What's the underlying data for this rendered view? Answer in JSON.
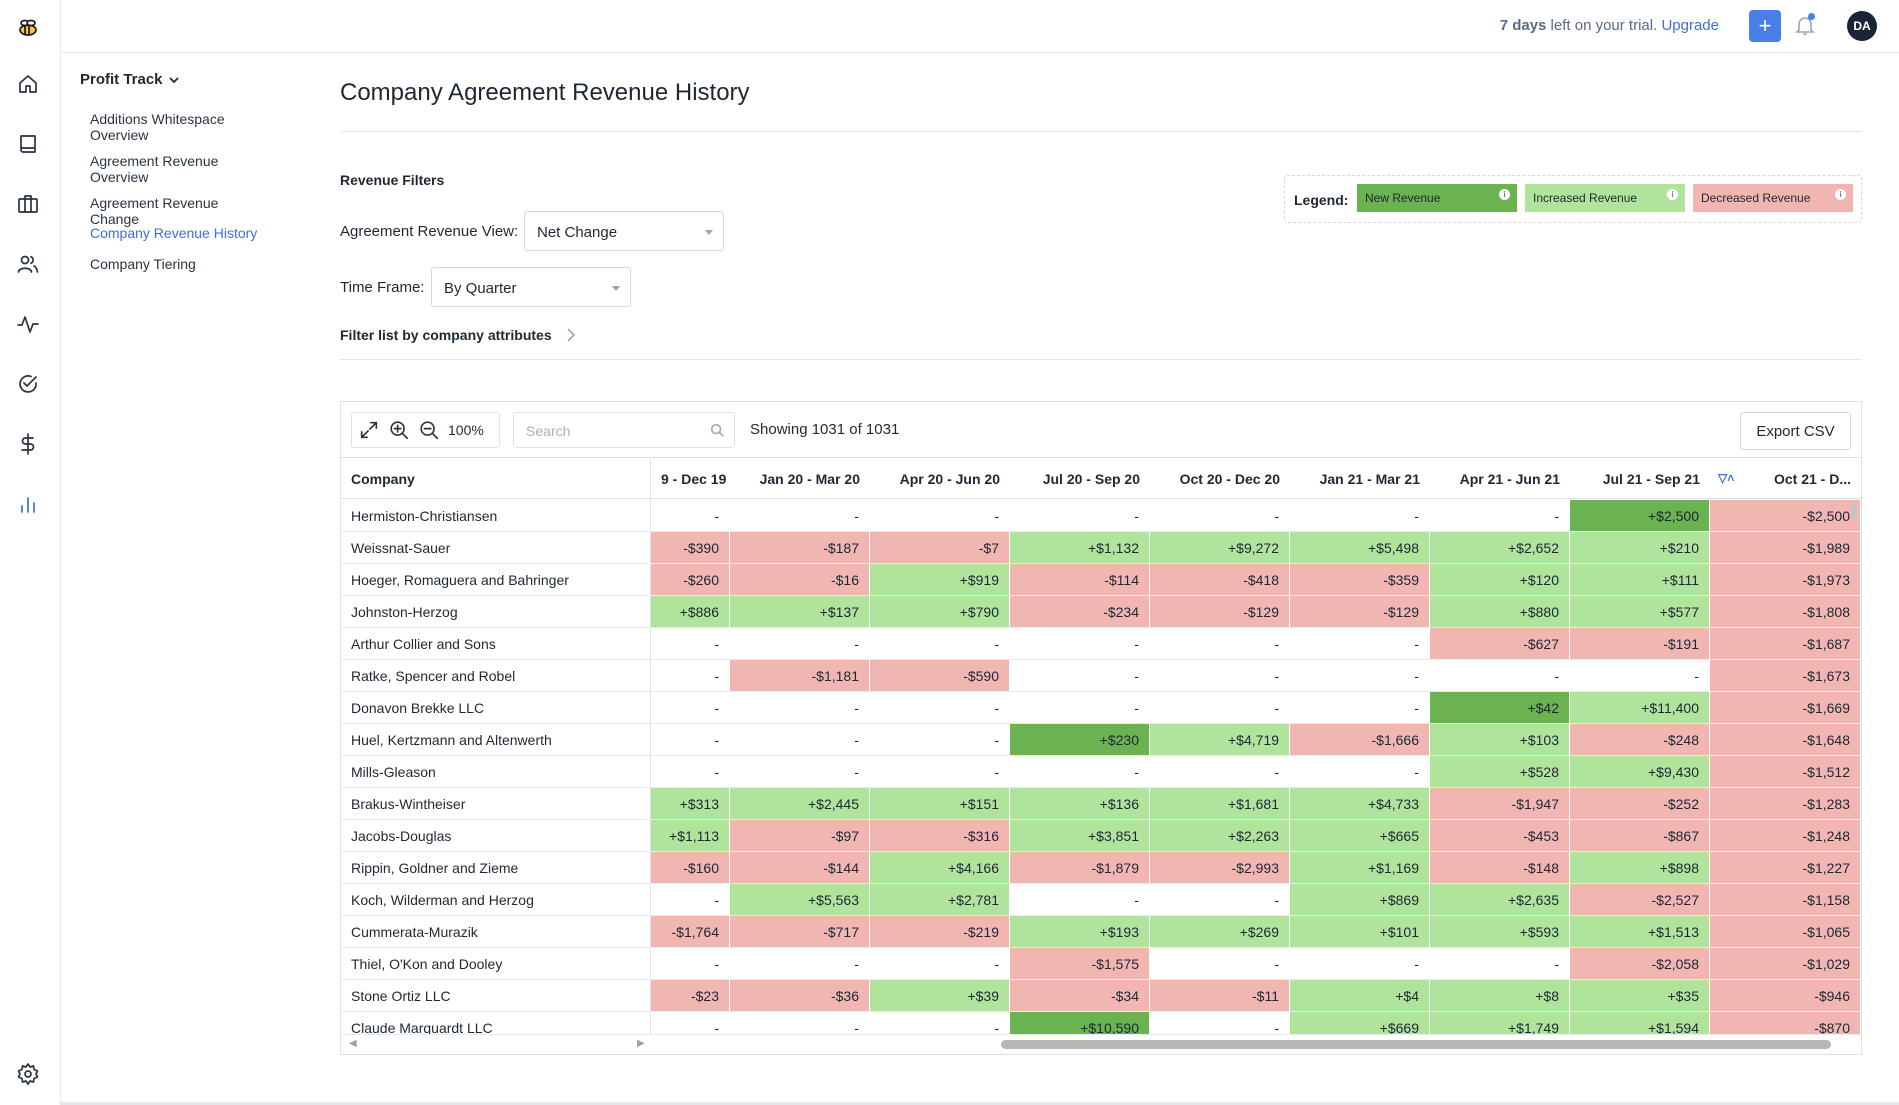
{
  "topbar": {
    "trial_days": "7 days",
    "trial_rest": " left on your trial. ",
    "upgrade": "Upgrade",
    "plus": "+",
    "avatar": "DA"
  },
  "subnav": {
    "title": "Profit Track",
    "items": [
      "Additions Whitespace Overview",
      "Agreement Revenue Overview",
      "Agreement Revenue Change",
      "Company Revenue History",
      "Company Tiering"
    ],
    "active_index": 3
  },
  "page": {
    "title": "Company Agreement Revenue History",
    "filters_title": "Revenue Filters",
    "view_label": "Agreement Revenue View:",
    "view_value": "Net Change",
    "timeframe_label": "Time Frame:",
    "timeframe_value": "By Quarter",
    "attr_link": "Filter list by company attributes"
  },
  "legend": {
    "label": "Legend:",
    "items": [
      {
        "label": "New Revenue",
        "color": "#6ab350"
      },
      {
        "label": "Increased Revenue",
        "color": "#b0e49c"
      },
      {
        "label": "Decreased Revenue",
        "color": "#f2b6b2"
      }
    ]
  },
  "grid": {
    "zoom": "100%",
    "search_placeholder": "Search",
    "showing": "Showing 1031 of 1031",
    "export": "Export CSV",
    "company_header": "Company",
    "columns": [
      "9 - Dec 19",
      "Jan 20 - Mar 20",
      "Apr 20 - Jun 20",
      "Jul 20 - Sep 20",
      "Oct 20 - Dec 20",
      "Jan 21 - Mar 21",
      "Apr 21 - Jun 21",
      "Jul 21 - Sep 21",
      "Oct 21 - D..."
    ],
    "rows": [
      {
        "company": "Hermiston-Christiansen",
        "cells": [
          [
            "-",
            "n"
          ],
          [
            "-",
            "n"
          ],
          [
            "-",
            "n"
          ],
          [
            "-",
            "n"
          ],
          [
            "-",
            "n"
          ],
          [
            "-",
            "n"
          ],
          [
            "-",
            "n"
          ],
          [
            "+$2,500",
            "N"
          ],
          [
            "-$2,500",
            "d"
          ]
        ]
      },
      {
        "company": "Weissnat-Sauer",
        "cells": [
          [
            "-$390",
            "d"
          ],
          [
            "-$187",
            "d"
          ],
          [
            "-$7",
            "d"
          ],
          [
            "+$1,132",
            "i"
          ],
          [
            "+$9,272",
            "i"
          ],
          [
            "+$5,498",
            "i"
          ],
          [
            "+$2,652",
            "i"
          ],
          [
            "+$210",
            "i"
          ],
          [
            "-$1,989",
            "d"
          ]
        ]
      },
      {
        "company": "Hoeger, Romaguera and Bahringer",
        "cells": [
          [
            "-$260",
            "d"
          ],
          [
            "-$16",
            "d"
          ],
          [
            "+$919",
            "i"
          ],
          [
            "-$114",
            "d"
          ],
          [
            "-$418",
            "d"
          ],
          [
            "-$359",
            "d"
          ],
          [
            "+$120",
            "i"
          ],
          [
            "+$111",
            "i"
          ],
          [
            "-$1,973",
            "d"
          ]
        ]
      },
      {
        "company": "Johnston-Herzog",
        "cells": [
          [
            "+$886",
            "i"
          ],
          [
            "+$137",
            "i"
          ],
          [
            "+$790",
            "i"
          ],
          [
            "-$234",
            "d"
          ],
          [
            "-$129",
            "d"
          ],
          [
            "-$129",
            "d"
          ],
          [
            "+$880",
            "i"
          ],
          [
            "+$577",
            "i"
          ],
          [
            "-$1,808",
            "d"
          ]
        ]
      },
      {
        "company": "Arthur Collier and Sons",
        "cells": [
          [
            "-",
            "n"
          ],
          [
            "-",
            "n"
          ],
          [
            "-",
            "n"
          ],
          [
            "-",
            "n"
          ],
          [
            "-",
            "n"
          ],
          [
            "-",
            "n"
          ],
          [
            "-$627",
            "d"
          ],
          [
            "-$191",
            "d"
          ],
          [
            "-$1,687",
            "d"
          ]
        ]
      },
      {
        "company": "Ratke, Spencer and Robel",
        "cells": [
          [
            "-",
            "n"
          ],
          [
            "-$1,181",
            "d"
          ],
          [
            "-$590",
            "d"
          ],
          [
            "-",
            "n"
          ],
          [
            "-",
            "n"
          ],
          [
            "-",
            "n"
          ],
          [
            "-",
            "n"
          ],
          [
            "-",
            "n"
          ],
          [
            "-$1,673",
            "d"
          ]
        ]
      },
      {
        "company": "Donavon Brekke LLC",
        "cells": [
          [
            "-",
            "n"
          ],
          [
            "-",
            "n"
          ],
          [
            "-",
            "n"
          ],
          [
            "-",
            "n"
          ],
          [
            "-",
            "n"
          ],
          [
            "-",
            "n"
          ],
          [
            "+$42",
            "N"
          ],
          [
            "+$11,400",
            "i"
          ],
          [
            "-$1,669",
            "d"
          ]
        ]
      },
      {
        "company": "Huel, Kertzmann and Altenwerth",
        "cells": [
          [
            "-",
            "n"
          ],
          [
            "-",
            "n"
          ],
          [
            "-",
            "n"
          ],
          [
            "+$230",
            "N"
          ],
          [
            "+$4,719",
            "i"
          ],
          [
            "-$1,666",
            "d"
          ],
          [
            "+$103",
            "i"
          ],
          [
            "-$248",
            "d"
          ],
          [
            "-$1,648",
            "d"
          ]
        ]
      },
      {
        "company": "Mills-Gleason",
        "cells": [
          [
            "-",
            "n"
          ],
          [
            "-",
            "n"
          ],
          [
            "-",
            "n"
          ],
          [
            "-",
            "n"
          ],
          [
            "-",
            "n"
          ],
          [
            "-",
            "n"
          ],
          [
            "+$528",
            "i"
          ],
          [
            "+$9,430",
            "i"
          ],
          [
            "-$1,512",
            "d"
          ]
        ]
      },
      {
        "company": "Brakus-Wintheiser",
        "cells": [
          [
            "+$313",
            "i"
          ],
          [
            "+$2,445",
            "i"
          ],
          [
            "+$151",
            "i"
          ],
          [
            "+$136",
            "i"
          ],
          [
            "+$1,681",
            "i"
          ],
          [
            "+$4,733",
            "i"
          ],
          [
            "-$1,947",
            "d"
          ],
          [
            "-$252",
            "d"
          ],
          [
            "-$1,283",
            "d"
          ]
        ]
      },
      {
        "company": "Jacobs-Douglas",
        "cells": [
          [
            "+$1,113",
            "i"
          ],
          [
            "-$97",
            "d"
          ],
          [
            "-$316",
            "d"
          ],
          [
            "+$3,851",
            "i"
          ],
          [
            "+$2,263",
            "i"
          ],
          [
            "+$665",
            "i"
          ],
          [
            "-$453",
            "d"
          ],
          [
            "-$867",
            "d"
          ],
          [
            "-$1,248",
            "d"
          ]
        ]
      },
      {
        "company": "Rippin, Goldner and Zieme",
        "cells": [
          [
            "-$160",
            "d"
          ],
          [
            "-$144",
            "d"
          ],
          [
            "+$4,166",
            "i"
          ],
          [
            "-$1,879",
            "d"
          ],
          [
            "-$2,993",
            "d"
          ],
          [
            "+$1,169",
            "i"
          ],
          [
            "-$148",
            "d"
          ],
          [
            "+$898",
            "i"
          ],
          [
            "-$1,227",
            "d"
          ]
        ]
      },
      {
        "company": "Koch, Wilderman and Herzog",
        "cells": [
          [
            "-",
            "n"
          ],
          [
            "+$5,563",
            "i"
          ],
          [
            "+$2,781",
            "i"
          ],
          [
            "-",
            "n"
          ],
          [
            "-",
            "n"
          ],
          [
            "+$869",
            "i"
          ],
          [
            "+$2,635",
            "i"
          ],
          [
            "-$2,527",
            "d"
          ],
          [
            "-$1,158",
            "d"
          ]
        ]
      },
      {
        "company": "Cummerata-Murazik",
        "cells": [
          [
            "-$1,764",
            "d"
          ],
          [
            "-$717",
            "d"
          ],
          [
            "-$219",
            "d"
          ],
          [
            "+$193",
            "i"
          ],
          [
            "+$269",
            "i"
          ],
          [
            "+$101",
            "i"
          ],
          [
            "+$593",
            "i"
          ],
          [
            "+$1,513",
            "i"
          ],
          [
            "-$1,065",
            "d"
          ]
        ]
      },
      {
        "company": "Thiel, O'Kon and Dooley",
        "cells": [
          [
            "-",
            "n"
          ],
          [
            "-",
            "n"
          ],
          [
            "-",
            "n"
          ],
          [
            "-$1,575",
            "d"
          ],
          [
            "-",
            "n"
          ],
          [
            "-",
            "n"
          ],
          [
            "-",
            "n"
          ],
          [
            "-$2,058",
            "d"
          ],
          [
            "-$1,029",
            "d"
          ]
        ]
      },
      {
        "company": "Stone Ortiz LLC",
        "cells": [
          [
            "-$23",
            "d"
          ],
          [
            "-$36",
            "d"
          ],
          [
            "+$39",
            "i"
          ],
          [
            "-$34",
            "d"
          ],
          [
            "-$11",
            "d"
          ],
          [
            "+$4",
            "i"
          ],
          [
            "+$8",
            "i"
          ],
          [
            "+$35",
            "i"
          ],
          [
            "-$946",
            "d"
          ]
        ]
      },
      {
        "company": "Claude Marquardt LLC",
        "cells": [
          [
            "-",
            "n"
          ],
          [
            "-",
            "n"
          ],
          [
            "-",
            "n"
          ],
          [
            "+$10,590",
            "N"
          ],
          [
            "-",
            "n"
          ],
          [
            "+$669",
            "i"
          ],
          [
            "+$1,749",
            "i"
          ],
          [
            "+$1,594",
            "i"
          ],
          [
            "-$870",
            "d"
          ]
        ]
      }
    ]
  }
}
